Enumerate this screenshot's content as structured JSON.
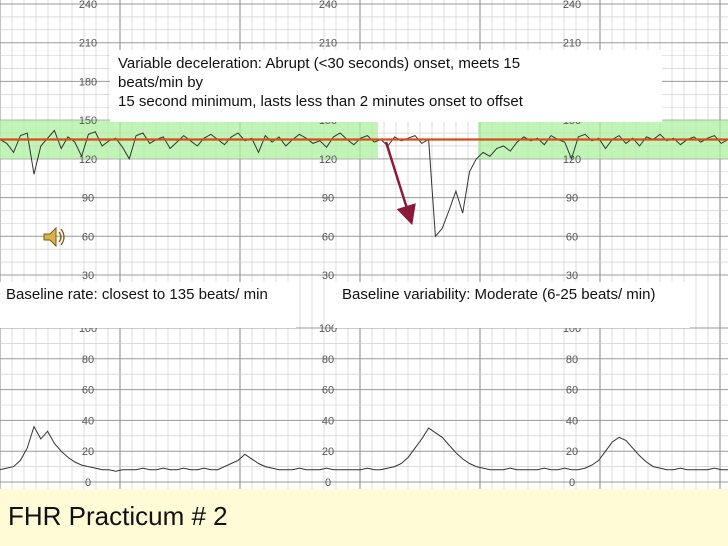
{
  "chart_data": {
    "type": "line",
    "top_panel": {
      "ylabel_ticks": [
        240,
        210,
        180,
        150,
        120,
        90,
        60,
        30
      ],
      "ylim": [
        30,
        240
      ],
      "grid": true,
      "baseline_band": [
        120,
        150
      ],
      "baseline_rate": 135,
      "series": [
        {
          "values": [
            135,
            132,
            125,
            138,
            140,
            108,
            130,
            136,
            142,
            128,
            137,
            133,
            122,
            139,
            141,
            130,
            134,
            136,
            129,
            120,
            138,
            140,
            132,
            135,
            137,
            128,
            133,
            138,
            134,
            130,
            136,
            139,
            135,
            131,
            137,
            140,
            134,
            136,
            125,
            138,
            133,
            137,
            130,
            135,
            139,
            136,
            132,
            134,
            129,
            137,
            140,
            135,
            131,
            136,
            138,
            133,
            135,
            130,
            137,
            134,
            136,
            138,
            132,
            135,
            60,
            66,
            80,
            95,
            78,
            110,
            120,
            125,
            122,
            128,
            130,
            126,
            133,
            137,
            134,
            136,
            131,
            138,
            135,
            133,
            120,
            137,
            139,
            134,
            136,
            128,
            135,
            138,
            132,
            136,
            130,
            137,
            135,
            139,
            134,
            136,
            131,
            135,
            137,
            133,
            136,
            138,
            132,
            135
          ]
        }
      ]
    },
    "bottom_panel": {
      "ylabel_ticks": [
        100,
        80,
        60,
        40,
        20,
        0
      ],
      "ylim": [
        0,
        100
      ],
      "grid": true,
      "series": [
        {
          "values": [
            8,
            9,
            10,
            14,
            22,
            36,
            28,
            33,
            25,
            20,
            16,
            13,
            11,
            10,
            9,
            8,
            8,
            7,
            8,
            8,
            8,
            9,
            8,
            8,
            9,
            8,
            8,
            9,
            8,
            8,
            9,
            8,
            8,
            10,
            12,
            14,
            18,
            15,
            12,
            10,
            9,
            8,
            8,
            8,
            9,
            8,
            8,
            8,
            9,
            8,
            8,
            8,
            8,
            8,
            9,
            8,
            8,
            9,
            10,
            12,
            16,
            22,
            28,
            35,
            32,
            29,
            24,
            19,
            15,
            12,
            10,
            9,
            8,
            8,
            8,
            9,
            8,
            8,
            8,
            8,
            9,
            8,
            8,
            9,
            8,
            8,
            9,
            11,
            14,
            20,
            26,
            29,
            27,
            22,
            17,
            13,
            10,
            9,
            8,
            8,
            9,
            8,
            8,
            8,
            8,
            9,
            8,
            8
          ]
        }
      ]
    }
  },
  "annotations": {
    "variable_decel_line1": "Variable deceleration: Abrupt (<30 seconds) onset, meets 15",
    "variable_decel_line2": "beats/min by",
    "variable_decel_line3": "15 second minimum, lasts less than 2 minutes onset to offset",
    "baseline_rate": "Baseline rate: closest to 135 beats/ min",
    "baseline_variability": "Baseline variability: Moderate (6-25 beats/ min)"
  },
  "footer": {
    "title": "FHR Practicum # 2"
  },
  "colors": {
    "band": "#aef0a0",
    "baseline_line": "#d94a1a",
    "arrow": "#8b1a3a",
    "grid": "#c8c8c8",
    "trace": "#333333",
    "footer_bg": "#fffbd6"
  },
  "icons": {
    "audio": "speaker-icon"
  }
}
